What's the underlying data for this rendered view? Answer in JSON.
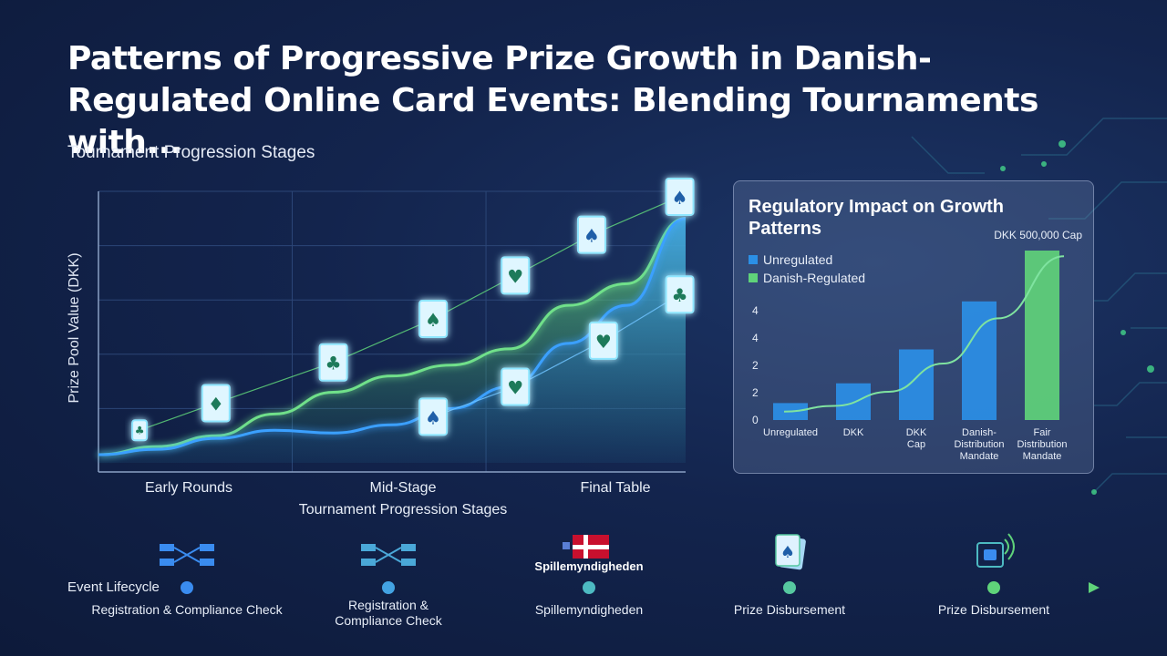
{
  "title": "Patterns of Progressive Prize Growth in Danish-Regulated Online Card Events: Blending Tournaments with...",
  "subtitle": "Tournament Progression Stages",
  "colors": {
    "background": "#13244d",
    "blue": "#2b8fe6",
    "green": "#5fd37a",
    "line": "#3aa0ff",
    "card_glow": "#7fe0ff"
  },
  "chart_data": [
    {
      "type": "area",
      "title": "",
      "xlabel": "Tournament Progression Stages",
      "ylabel": "Prize Pool Value (DKK)",
      "categories": [
        "Early Rounds",
        "Mid-Stage",
        "Final Table"
      ],
      "grid": true,
      "x": [
        0,
        0.1,
        0.2,
        0.3,
        0.4,
        0.5,
        0.6,
        0.7,
        0.8,
        0.9,
        1.0
      ],
      "series": [
        {
          "values": [
            3,
            6,
            10,
            18,
            26,
            32,
            36,
            42,
            58,
            66,
            90
          ]
        },
        {
          "values": [
            3,
            5,
            9,
            12,
            11,
            14,
            20,
            28,
            44,
            58,
            90
          ]
        }
      ],
      "cards": [
        {
          "x": 0.07,
          "y": 12,
          "suit": "club"
        },
        {
          "x": 0.2,
          "y": 22,
          "suit": "diamond"
        },
        {
          "x": 0.4,
          "y": 37,
          "suit": "club"
        },
        {
          "x": 0.57,
          "y": 53,
          "suit": "spade"
        },
        {
          "x": 0.71,
          "y": 69,
          "suit": "heart"
        },
        {
          "x": 0.84,
          "y": 84,
          "suit": "spade"
        },
        {
          "x": 0.99,
          "y": 98,
          "suit": "spade"
        },
        {
          "x": 0.57,
          "y": 17,
          "suit": "spade"
        },
        {
          "x": 0.71,
          "y": 28,
          "suit": "heart"
        },
        {
          "x": 0.86,
          "y": 45,
          "suit": "heart"
        },
        {
          "x": 0.99,
          "y": 62,
          "suit": "club"
        }
      ]
    },
    {
      "type": "bar",
      "title": "Regulatory Impact on Growth Patterns",
      "annotation": "DKK 500,000 Cap",
      "legend": [
        "Unregulated",
        "Danish-Regulated"
      ],
      "legend_position": "top-left",
      "categories": [
        "Unregulated",
        "DKK",
        "DKK Cap",
        "Danish-Distribution Mandate",
        "Fair Distribution Mandate"
      ],
      "values": [
        0.6,
        1.3,
        2.5,
        4.2,
        6.0
      ],
      "bar_colors": [
        "#2b8fe6",
        "#2b8fe6",
        "#2b8fe6",
        "#2b8fe6",
        "#5fd37a"
      ],
      "yticks": [
        "0",
        "2",
        "2",
        "4",
        "4"
      ],
      "trend": [
        0.3,
        0.5,
        1.0,
        2.0,
        3.6,
        5.8
      ]
    }
  ],
  "lifecycle": {
    "label": "Event Lifecycle",
    "authority": "Spillemyndigheden",
    "steps": [
      {
        "label": "Registration & Compliance Check",
        "icon": "flow-icon"
      },
      {
        "label": "Registration &\nCompliance Check",
        "icon": "flow-icon"
      },
      {
        "label": "Spillemyndigheden",
        "icon": "danish-flag-icon"
      },
      {
        "label": "Prize Disbursement",
        "icon": "playing-card-icon"
      },
      {
        "label": "Prize Disbursement",
        "icon": "secure-payment-icon"
      }
    ]
  }
}
